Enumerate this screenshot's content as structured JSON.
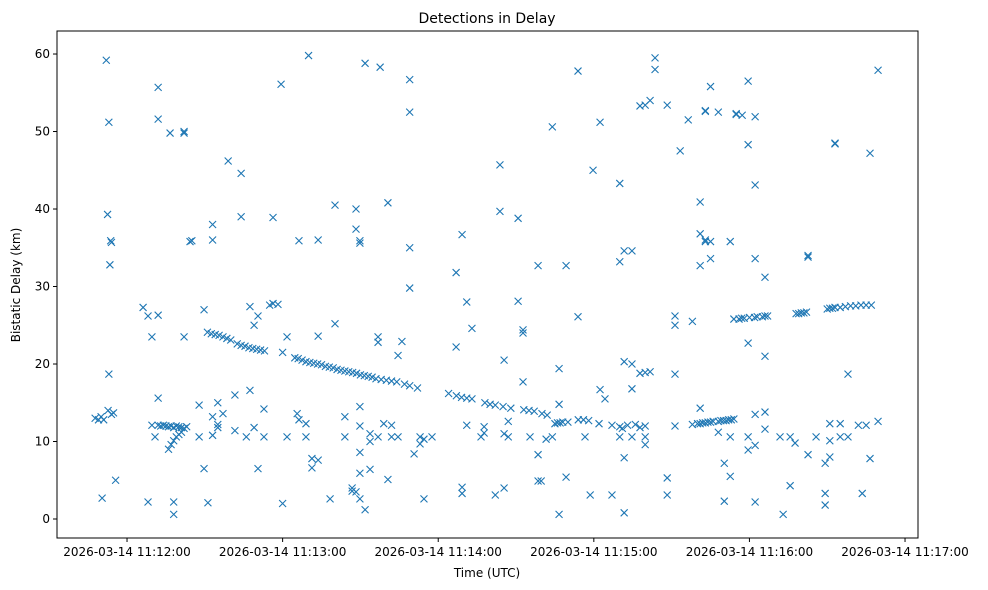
{
  "chart_data": {
    "type": "scatter",
    "title": "Detections in Delay",
    "xlabel": "Time (UTC)",
    "ylabel": "Bistatic Delay (km)",
    "x_units": "seconds after 2026-03-14 11:12:00 UTC",
    "xlim": [
      -27,
      305
    ],
    "ylim": [
      -2.45,
      62.97
    ],
    "grid": false,
    "marker": "x",
    "color": "#1f77b4",
    "x_ticks": [
      0,
      60,
      120,
      180,
      240,
      300
    ],
    "x_tick_labels": [
      "2026-03-14 11:12:00",
      "2026-03-14 11:13:00",
      "2026-03-14 11:14:00",
      "2026-03-14 11:15:00",
      "2026-03-14 11:16:00",
      "2026-03-14 11:17:00"
    ],
    "y_ticks": [
      0,
      10,
      20,
      30,
      40,
      50,
      60
    ],
    "y_tick_labels": [
      "0",
      "10",
      "20",
      "30",
      "40",
      "50",
      "60"
    ],
    "points": [
      [
        -12.3,
        13
      ],
      [
        -11,
        12.8
      ],
      [
        -10,
        13.2
      ],
      [
        -9.6,
        2.7
      ],
      [
        -9,
        12.8
      ],
      [
        -8,
        59.2
      ],
      [
        -7.5,
        39.3
      ],
      [
        -7.3,
        14
      ],
      [
        -7,
        18.7
      ],
      [
        -7,
        51.2
      ],
      [
        -6.6,
        32.8
      ],
      [
        -6.3,
        35.9
      ],
      [
        -6,
        35.7
      ],
      [
        -6,
        13.5
      ],
      [
        -5.2,
        13.7
      ],
      [
        -4.4,
        5
      ],
      [
        6.2,
        27.3
      ],
      [
        8.1,
        2.2
      ],
      [
        8.1,
        26.2
      ],
      [
        9.6,
        23.5
      ],
      [
        9.6,
        12.1
      ],
      [
        10.8,
        10.6
      ],
      [
        12,
        26.3
      ],
      [
        12,
        55.7
      ],
      [
        12,
        51.6
      ],
      [
        12,
        15.6
      ],
      [
        12,
        12.1
      ],
      [
        13,
        12
      ],
      [
        14,
        12.1
      ],
      [
        15,
        12
      ],
      [
        16,
        11.9
      ],
      [
        17,
        12
      ],
      [
        18,
        11.8
      ],
      [
        19,
        12
      ],
      [
        20,
        11.9
      ],
      [
        21,
        11.8
      ],
      [
        22,
        11.7
      ],
      [
        23,
        11.9
      ],
      [
        16,
        9
      ],
      [
        17,
        9.6
      ],
      [
        18,
        10.1
      ],
      [
        19,
        10.6
      ],
      [
        20,
        10.9
      ],
      [
        21,
        11.2
      ],
      [
        16.6,
        49.8
      ],
      [
        18,
        2.2
      ],
      [
        18,
        0.6
      ],
      [
        22,
        50
      ],
      [
        22,
        49.8
      ],
      [
        22,
        23.5
      ],
      [
        24.3,
        35.8
      ],
      [
        25,
        35.9
      ],
      [
        27.8,
        14.7
      ],
      [
        27.8,
        10.6
      ],
      [
        29.7,
        27
      ],
      [
        29.7,
        6.5
      ],
      [
        31.2,
        2.1
      ],
      [
        33,
        36
      ],
      [
        33,
        38
      ],
      [
        33,
        13.2
      ],
      [
        33,
        10.8
      ],
      [
        35,
        11.8
      ],
      [
        35,
        15
      ],
      [
        35,
        12.2
      ],
      [
        37,
        13.6
      ],
      [
        39,
        46.2
      ],
      [
        41.6,
        11.4
      ],
      [
        41.6,
        16
      ],
      [
        44,
        39
      ],
      [
        44,
        44.6
      ],
      [
        46,
        10.6
      ],
      [
        47.4,
        16.6
      ],
      [
        47.4,
        27.4
      ],
      [
        49,
        25
      ],
      [
        49,
        11.8
      ],
      [
        50.5,
        26.2
      ],
      [
        50.5,
        6.5
      ],
      [
        52.8,
        14.2
      ],
      [
        52.8,
        10.6
      ],
      [
        55,
        27.6
      ],
      [
        56.3,
        38.9
      ],
      [
        56.3,
        27.8
      ],
      [
        58.2,
        27.7
      ],
      [
        59.4,
        56.1
      ],
      [
        60,
        2
      ],
      [
        60,
        21.5
      ],
      [
        61.7,
        10.6
      ],
      [
        61.7,
        23.5
      ],
      [
        65.6,
        13.6
      ],
      [
        66.3,
        35.9
      ],
      [
        66.3,
        12.8
      ],
      [
        69,
        10.6
      ],
      [
        69,
        12.3
      ],
      [
        70,
        59.8
      ],
      [
        71.3,
        6.6
      ],
      [
        71.3,
        7.8
      ],
      [
        73.7,
        36
      ],
      [
        73.7,
        7.6
      ],
      [
        73.7,
        23.6
      ],
      [
        78.3,
        2.6
      ],
      [
        80.2,
        40.5
      ],
      [
        80.2,
        25.2
      ],
      [
        84,
        13.2
      ],
      [
        84,
        10.6
      ],
      [
        86.8,
        3.6
      ],
      [
        86.8,
        4
      ],
      [
        88.3,
        40
      ],
      [
        88.3,
        37.4
      ],
      [
        88.3,
        3.5
      ],
      [
        89.8,
        35.6
      ],
      [
        89.8,
        35.9
      ],
      [
        89.8,
        14.5
      ],
      [
        89.8,
        12
      ],
      [
        89.8,
        8.6
      ],
      [
        89.8,
        5.9
      ],
      [
        89.8,
        2.6
      ],
      [
        91.8,
        58.8
      ],
      [
        91.8,
        1.2
      ],
      [
        93.7,
        6.4
      ],
      [
        93.7,
        10
      ],
      [
        93.7,
        11
      ],
      [
        96.8,
        23.5
      ],
      [
        96.8,
        22.8
      ],
      [
        96.8,
        10.6
      ],
      [
        97.6,
        58.3
      ],
      [
        99,
        12.3
      ],
      [
        100.6,
        5.1
      ],
      [
        100.6,
        40.8
      ],
      [
        102,
        12.1
      ],
      [
        102,
        10.6
      ],
      [
        104.5,
        21.1
      ],
      [
        104.5,
        10.6
      ],
      [
        106,
        22.9
      ],
      [
        109,
        56.7
      ],
      [
        109,
        52.5
      ],
      [
        109,
        35
      ],
      [
        109,
        29.8
      ],
      [
        110.7,
        8.4
      ],
      [
        113,
        9.7
      ],
      [
        113,
        10.6
      ],
      [
        114.5,
        2.6
      ],
      [
        114.5,
        10.3
      ],
      [
        117.6,
        10.6
      ],
      [
        126.9,
        31.8
      ],
      [
        126.9,
        22.2
      ],
      [
        129.2,
        36.7
      ],
      [
        129.2,
        4.1
      ],
      [
        129.2,
        3.3
      ],
      [
        131,
        28
      ],
      [
        131,
        12.1
      ],
      [
        133,
        24.6
      ],
      [
        136.5,
        10.6
      ],
      [
        137.7,
        11.9
      ],
      [
        137.7,
        11.1
      ],
      [
        142,
        3.1
      ],
      [
        143.8,
        39.7
      ],
      [
        143.8,
        45.7
      ],
      [
        145.4,
        20.5
      ],
      [
        145.4,
        4
      ],
      [
        145.4,
        11
      ],
      [
        147,
        12.6
      ],
      [
        147,
        10.6
      ],
      [
        150.8,
        28.1
      ],
      [
        150.8,
        38.8
      ],
      [
        152.7,
        24
      ],
      [
        152.7,
        24.4
      ],
      [
        152.7,
        17.7
      ],
      [
        155.4,
        10.6
      ],
      [
        158.5,
        32.7
      ],
      [
        158.5,
        8.3
      ],
      [
        158.5,
        4.9
      ],
      [
        159.7,
        4.9
      ],
      [
        161.6,
        10.3
      ],
      [
        164,
        50.6
      ],
      [
        164,
        10.6
      ],
      [
        166.6,
        19.4
      ],
      [
        166.6,
        14.8
      ],
      [
        166.6,
        0.6
      ],
      [
        169.3,
        32.7
      ],
      [
        169.3,
        5.4
      ],
      [
        173.9,
        57.8
      ],
      [
        173.9,
        26.1
      ],
      [
        176.6,
        10.6
      ],
      [
        178.6,
        3.1
      ],
      [
        179.7,
        45
      ],
      [
        182.4,
        51.2
      ],
      [
        182.4,
        16.7
      ],
      [
        184.3,
        15.5
      ],
      [
        187,
        3.1
      ],
      [
        187,
        12.1
      ],
      [
        190,
        43.3
      ],
      [
        190,
        33.2
      ],
      [
        190,
        10.6
      ],
      [
        191.7,
        20.3
      ],
      [
        191.7,
        0.8
      ],
      [
        191.7,
        7.9
      ],
      [
        191.7,
        34.6
      ],
      [
        194.7,
        34.6
      ],
      [
        194.7,
        20
      ],
      [
        194.7,
        16.8
      ],
      [
        194.7,
        10.6
      ],
      [
        197.8,
        53.3
      ],
      [
        197.8,
        18.8
      ],
      [
        197.8,
        11.8
      ],
      [
        199.8,
        53.4
      ],
      [
        199.8,
        18.9
      ],
      [
        199.8,
        10.6
      ],
      [
        199.8,
        12
      ],
      [
        199.8,
        9.6
      ],
      [
        201.7,
        19
      ],
      [
        201.7,
        54
      ],
      [
        203.6,
        59.5
      ],
      [
        203.6,
        58
      ],
      [
        208.3,
        53.4
      ],
      [
        208.3,
        3.1
      ],
      [
        208.3,
        5.3
      ],
      [
        211.3,
        26.2
      ],
      [
        211.3,
        25
      ],
      [
        211.3,
        18.7
      ],
      [
        211.3,
        12
      ],
      [
        213.3,
        47.5
      ],
      [
        216.4,
        51.5
      ],
      [
        218,
        25.5
      ],
      [
        221,
        14.3
      ],
      [
        221,
        32.7
      ],
      [
        221,
        36.8
      ],
      [
        221,
        40.9
      ],
      [
        223,
        52.7
      ],
      [
        223,
        52.6
      ],
      [
        223,
        35.8
      ],
      [
        223,
        36
      ],
      [
        225,
        35.8
      ],
      [
        225,
        33.6
      ],
      [
        225,
        55.8
      ],
      [
        228,
        52.5
      ],
      [
        228,
        11.2
      ],
      [
        230.3,
        7.2
      ],
      [
        230.3,
        2.3
      ],
      [
        232.6,
        35.8
      ],
      [
        232.6,
        5.5
      ],
      [
        232.6,
        10.6
      ],
      [
        234.9,
        52.3
      ],
      [
        234.9,
        52.2
      ],
      [
        237.2,
        52.1
      ],
      [
        239.5,
        56.5
      ],
      [
        239.5,
        48.3
      ],
      [
        239.5,
        22.7
      ],
      [
        239.5,
        10.6
      ],
      [
        239.5,
        8.9
      ],
      [
        242.2,
        51.9
      ],
      [
        242.2,
        33.6
      ],
      [
        242.2,
        43.1
      ],
      [
        242.2,
        2.2
      ],
      [
        242.2,
        9.5
      ],
      [
        242.2,
        13.5
      ],
      [
        246,
        31.2
      ],
      [
        246,
        21
      ],
      [
        246,
        13.8
      ],
      [
        246,
        11.6
      ],
      [
        251.8,
        10.6
      ],
      [
        253,
        0.6
      ],
      [
        255.7,
        4.3
      ],
      [
        255.7,
        10.6
      ],
      [
        257.6,
        9.8
      ],
      [
        262.6,
        8.3
      ],
      [
        262.6,
        34
      ],
      [
        262.6,
        33.8
      ],
      [
        265.7,
        10.6
      ],
      [
        269.2,
        1.8
      ],
      [
        269.2,
        3.3
      ],
      [
        269.2,
        7.2
      ],
      [
        271,
        8
      ],
      [
        271,
        10.1
      ],
      [
        271,
        12.3
      ],
      [
        273,
        48.5
      ],
      [
        273,
        48.4
      ],
      [
        275,
        10.6
      ],
      [
        275,
        12.3
      ],
      [
        278,
        18.7
      ],
      [
        278,
        10.6
      ],
      [
        282,
        12.1
      ],
      [
        283.5,
        3.3
      ],
      [
        285,
        12.1
      ],
      [
        286.5,
        47.2
      ],
      [
        286.5,
        7.8
      ],
      [
        289.6,
        57.9
      ],
      [
        289.6,
        12.6
      ],
      [
        31,
        24.1
      ],
      [
        32.5,
        23.9
      ],
      [
        34,
        23.8
      ],
      [
        35.5,
        23.7
      ],
      [
        37,
        23.5
      ],
      [
        38.5,
        23.3
      ],
      [
        40,
        23.1
      ],
      [
        42.5,
        22.6
      ],
      [
        44,
        22.4
      ],
      [
        45.5,
        22.3
      ],
      [
        47,
        22.1
      ],
      [
        48.5,
        22
      ],
      [
        50,
        21.9
      ],
      [
        51.5,
        21.8
      ],
      [
        53,
        21.7
      ],
      [
        64.7,
        20.8
      ],
      [
        66,
        20.7
      ],
      [
        67.5,
        20.5
      ],
      [
        69,
        20.3
      ],
      [
        70.5,
        20.2
      ],
      [
        72,
        20.1
      ],
      [
        73.5,
        20
      ],
      [
        75,
        19.9
      ],
      [
        76.5,
        19.7
      ],
      [
        78,
        19.6
      ],
      [
        79.5,
        19.5
      ],
      [
        81,
        19.3
      ],
      [
        82.5,
        19.2
      ],
      [
        84,
        19.1
      ],
      [
        85.5,
        19
      ],
      [
        87,
        18.9
      ],
      [
        88.5,
        18.8
      ],
      [
        90,
        18.6
      ],
      [
        91.5,
        18.5
      ],
      [
        93,
        18.4
      ],
      [
        94.5,
        18.3
      ],
      [
        96,
        18.1
      ],
      [
        98,
        18
      ],
      [
        100,
        17.9
      ],
      [
        102,
        17.8
      ],
      [
        104,
        17.7
      ],
      [
        107,
        17.4
      ],
      [
        109,
        17.2
      ],
      [
        112,
        16.9
      ],
      [
        124,
        16.2
      ],
      [
        127,
        15.9
      ],
      [
        129,
        15.7
      ],
      [
        131,
        15.6
      ],
      [
        133,
        15.5
      ],
      [
        138,
        15
      ],
      [
        140,
        14.8
      ],
      [
        142,
        14.7
      ],
      [
        145,
        14.5
      ],
      [
        148,
        14.3
      ],
      [
        153,
        14.1
      ],
      [
        155,
        14
      ],
      [
        157,
        13.9
      ],
      [
        160,
        13.6
      ],
      [
        162,
        13.4
      ],
      [
        165,
        12.3
      ],
      [
        166,
        12.4
      ],
      [
        167,
        12.4
      ],
      [
        168,
        12.5
      ],
      [
        170,
        12.5
      ],
      [
        174,
        12.8
      ],
      [
        176,
        12.8
      ],
      [
        178,
        12.7
      ],
      [
        182,
        12.3
      ],
      [
        190,
        11.9
      ],
      [
        191,
        11.7
      ],
      [
        193,
        12.1
      ],
      [
        196,
        12.2
      ],
      [
        218,
        12.2
      ],
      [
        220,
        12.3
      ],
      [
        221,
        12.3
      ],
      [
        222,
        12.4
      ],
      [
        223,
        12.4
      ],
      [
        224,
        12.5
      ],
      [
        225,
        12.5
      ],
      [
        226,
        12.6
      ],
      [
        228,
        12.6
      ],
      [
        229,
        12.7
      ],
      [
        230,
        12.7
      ],
      [
        231,
        12.7
      ],
      [
        232,
        12.8
      ],
      [
        233,
        12.8
      ],
      [
        234,
        12.9
      ],
      [
        234,
        25.8
      ],
      [
        236,
        25.8
      ],
      [
        237,
        25.9
      ],
      [
        238,
        25.9
      ],
      [
        240,
        26
      ],
      [
        242,
        26
      ],
      [
        243,
        26.1
      ],
      [
        245,
        26.1
      ],
      [
        246,
        26.2
      ],
      [
        247,
        26.2
      ],
      [
        258,
        26.5
      ],
      [
        259,
        26.5
      ],
      [
        260,
        26.6
      ],
      [
        261,
        26.6
      ],
      [
        262,
        26.7
      ],
      [
        270,
        27.1
      ],
      [
        271,
        27.2
      ],
      [
        272,
        27.2
      ],
      [
        273,
        27.3
      ],
      [
        275,
        27.3
      ],
      [
        277,
        27.4
      ],
      [
        279,
        27.5
      ],
      [
        281,
        27.5
      ],
      [
        283,
        27.6
      ],
      [
        285,
        27.6
      ],
      [
        287,
        27.6
      ]
    ]
  }
}
